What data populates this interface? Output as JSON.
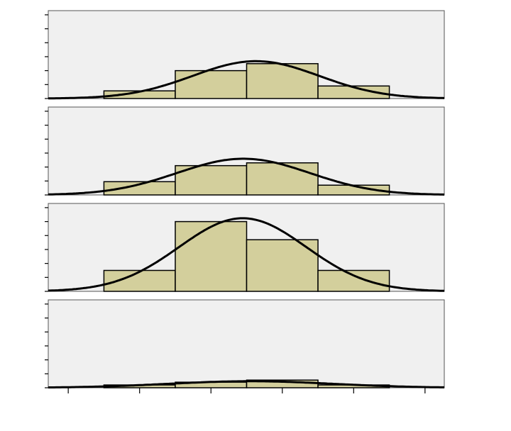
{
  "chart_data": [
    {
      "type": "histogram",
      "bins": [
        0.5,
        1.5,
        2.5,
        3.5,
        4.5
      ],
      "counts": [
        1.1,
        4,
        5,
        1.8
      ],
      "color": "#d3cf9c",
      "curve": "normal",
      "xlim": [
        -0.28,
        5.27
      ],
      "ylim": [
        0,
        12.6
      ],
      "yticks": [
        0,
        2,
        4,
        6,
        8,
        10,
        12
      ]
    },
    {
      "type": "histogram",
      "bins": [
        0.5,
        1.5,
        2.5,
        3.5,
        4.5
      ],
      "counts": [
        1.9,
        4.2,
        4.6,
        1.4
      ],
      "color": "#d3cf9c",
      "curve": "normal",
      "xlim": [
        -0.28,
        5.27
      ],
      "ylim": [
        0,
        12.6
      ],
      "yticks": [
        0,
        2,
        4,
        6,
        8,
        10,
        12
      ]
    },
    {
      "type": "histogram",
      "bins": [
        0.5,
        1.5,
        2.5,
        3.5,
        4.5
      ],
      "counts": [
        3,
        10,
        7.4,
        3
      ],
      "color": "#d3cf9c",
      "curve": "normal",
      "xlim": [
        -0.28,
        5.27
      ],
      "ylim": [
        0,
        12.6
      ],
      "yticks": [
        0,
        2,
        4,
        6,
        8,
        10,
        12
      ]
    },
    {
      "type": "histogram",
      "bins": [
        0.5,
        1.5,
        2.5,
        3.5,
        4.5
      ],
      "counts": [
        0.4,
        0.8,
        1.1,
        0.4
      ],
      "color": "#d3cf9c",
      "curve": "normal",
      "xlim": [
        -0.28,
        5.27
      ],
      "ylim": [
        0,
        12.6
      ],
      "yticks": [
        0,
        2,
        4,
        6,
        8,
        10,
        12
      ],
      "xticks": [
        0,
        1,
        2,
        3,
        4,
        5
      ]
    }
  ]
}
